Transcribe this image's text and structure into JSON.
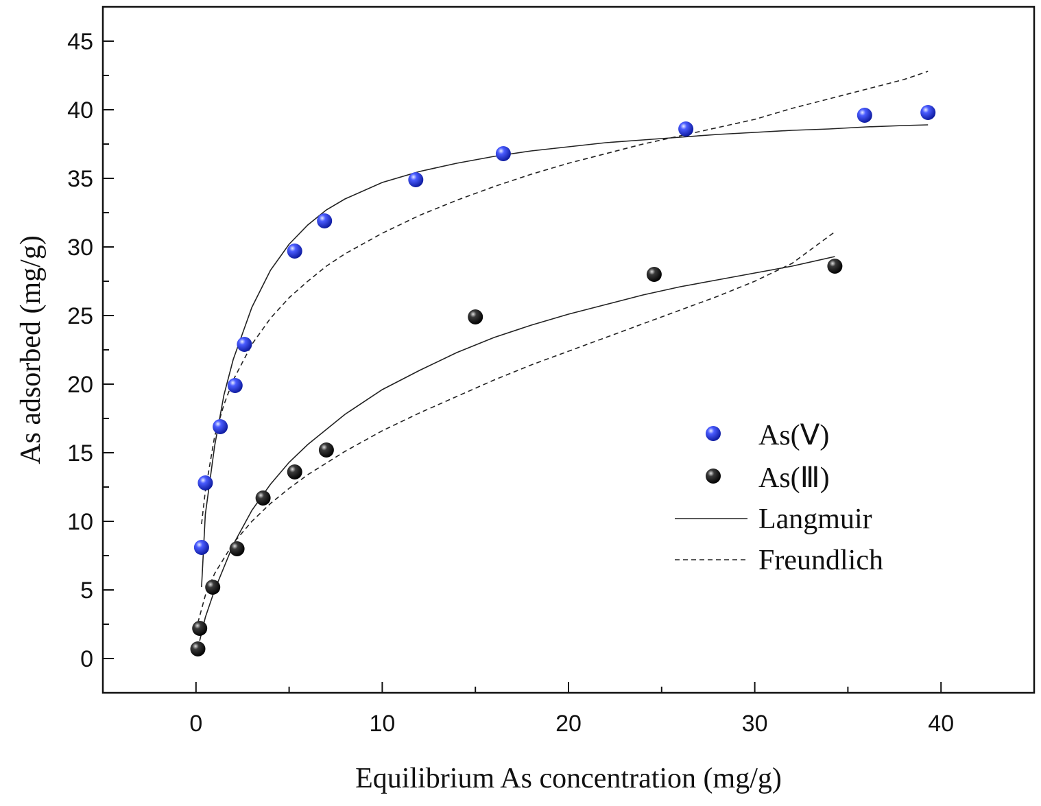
{
  "chart_data": {
    "type": "scatter",
    "title": "",
    "xlabel": "Equilibrium As concentration (mg/g)",
    "ylabel": "As adsorbed (mg/g)",
    "xlim": [
      -5,
      45
    ],
    "ylim": [
      -2.5,
      47.5
    ],
    "xticks": [
      0,
      10,
      20,
      30,
      40
    ],
    "yticks": [
      0,
      5,
      10,
      15,
      20,
      25,
      30,
      35,
      40,
      45
    ],
    "xtick_labels": [
      "0",
      "10",
      "20",
      "30",
      "40"
    ],
    "ytick_labels": [
      "0",
      "5",
      "10",
      "15",
      "20",
      "25",
      "30",
      "35",
      "40",
      "45"
    ],
    "legend_position": "center-right",
    "series": [
      {
        "name": "As(Ⅴ)",
        "kind": "points",
        "color": "#1f2fd6",
        "points": [
          [
            0.3,
            8.1
          ],
          [
            0.5,
            12.8
          ],
          [
            1.3,
            16.9
          ],
          [
            2.1,
            19.9
          ],
          [
            2.6,
            22.9
          ],
          [
            5.3,
            29.7
          ],
          [
            6.9,
            31.9
          ],
          [
            11.8,
            34.9
          ],
          [
            16.5,
            36.8
          ],
          [
            26.3,
            38.6
          ],
          [
            35.9,
            39.6
          ],
          [
            39.3,
            39.8
          ]
        ]
      },
      {
        "name": "As(Ⅲ)",
        "kind": "points",
        "color": "#111111",
        "points": [
          [
            0.1,
            0.7
          ],
          [
            0.2,
            2.2
          ],
          [
            0.9,
            5.2
          ],
          [
            2.2,
            8.0
          ],
          [
            3.6,
            11.7
          ],
          [
            5.3,
            13.6
          ],
          [
            7.0,
            15.2
          ],
          [
            15.0,
            24.9
          ],
          [
            24.6,
            28.0
          ],
          [
            34.3,
            28.6
          ]
        ]
      },
      {
        "name": "Langmuir",
        "kind": "line",
        "style": "solid",
        "curves": [
          {
            "of": "As(Ⅴ)",
            "x": [
              0.3,
              0.5,
              1.0,
              1.5,
              2.0,
              3.0,
              4.0,
              5.0,
              6.0,
              7.0,
              8.0,
              10.0,
              12.0,
              14.0,
              16.0,
              18.0,
              20.0,
              22.0,
              24.0,
              26.0,
              28.0,
              30.0,
              32.0,
              34.0,
              36.0,
              38.0,
              39.3
            ],
            "y": [
              5.2,
              10.5,
              15.5,
              19.2,
              21.8,
              25.6,
              28.3,
              30.2,
              31.6,
              32.7,
              33.5,
              34.7,
              35.5,
              36.1,
              36.6,
              37.0,
              37.3,
              37.6,
              37.8,
              38.0,
              38.2,
              38.35,
              38.5,
              38.6,
              38.75,
              38.85,
              38.9
            ]
          },
          {
            "of": "As(Ⅲ)",
            "x": [
              0.2,
              0.5,
              1.0,
              2.0,
              3.0,
              4.0,
              5.0,
              6.0,
              8.0,
              10.0,
              12.0,
              14.0,
              16.0,
              18.0,
              20.0,
              22.0,
              24.0,
              26.0,
              28.0,
              30.0,
              32.0,
              34.3
            ],
            "y": [
              1.3,
              3.0,
              5.0,
              8.3,
              10.8,
              12.7,
              14.3,
              15.6,
              17.8,
              19.6,
              21.0,
              22.3,
              23.4,
              24.3,
              25.1,
              25.8,
              26.5,
              27.1,
              27.6,
              28.1,
              28.6,
              29.3
            ]
          }
        ]
      },
      {
        "name": "Freundlich",
        "kind": "line",
        "style": "dashed",
        "curves": [
          {
            "of": "As(Ⅴ)",
            "x": [
              0.3,
              0.5,
              1.0,
              1.5,
              2.0,
              3.0,
              4.0,
              5.0,
              6.0,
              7.0,
              8.0,
              10.0,
              12.0,
              14.0,
              16.0,
              18.0,
              20.0,
              22.0,
              24.0,
              26.0,
              28.0,
              30.0,
              32.0,
              34.0,
              36.0,
              38.0,
              39.3
            ],
            "y": [
              9.8,
              12.2,
              16.2,
              18.5,
              20.3,
              22.9,
              24.8,
              26.3,
              27.5,
              28.6,
              29.5,
              31.0,
              32.3,
              33.4,
              34.4,
              35.3,
              36.1,
              36.8,
              37.5,
              38.1,
              38.7,
              39.3,
              40.1,
              40.8,
              41.5,
              42.2,
              42.8
            ]
          },
          {
            "of": "As(Ⅲ)",
            "x": [
              0.1,
              0.5,
              1.0,
              2.0,
              3.0,
              4.0,
              5.0,
              6.0,
              8.0,
              10.0,
              12.0,
              14.0,
              16.0,
              18.0,
              20.0,
              22.0,
              24.0,
              26.0,
              28.0,
              30.0,
              32.0,
              34.3
            ],
            "y": [
              2.6,
              4.6,
              6.2,
              8.4,
              10.0,
              11.3,
              12.4,
              13.4,
              15.1,
              16.6,
              17.9,
              19.1,
              20.3,
              21.4,
              22.4,
              23.4,
              24.4,
              25.4,
              26.4,
              27.5,
              28.8,
              31.1
            ]
          }
        ]
      }
    ]
  }
}
